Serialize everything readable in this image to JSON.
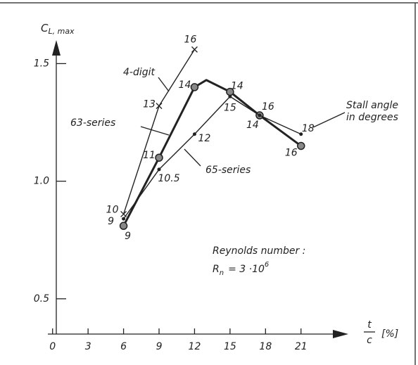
{
  "chart_data": {
    "type": "line",
    "y_label": [
      "C",
      "L, max"
    ],
    "x_label": [
      "t",
      "c",
      "[%]"
    ],
    "xlim": [
      -0.4,
      25
    ],
    "ylim": [
      0.35,
      1.6
    ],
    "xticks": [
      0,
      3,
      6,
      9,
      12,
      15,
      18,
      21
    ],
    "yticks": [
      0.5,
      {
        "value": 1,
        "label": "1.0"
      },
      1.5
    ],
    "series": [
      {
        "name": "4-digit",
        "color": "#222",
        "x": [
          6,
          9,
          12
        ],
        "values": [
          0.86,
          1.32,
          1.56
        ],
        "labels": [
          10,
          13,
          16
        ]
      },
      {
        "name": "63-series",
        "color": "#222",
        "x": [
          6,
          9,
          12,
          13,
          15,
          17.5,
          21
        ],
        "values": [
          0.81,
          1.1,
          1.4,
          1.43,
          1.38,
          1.28,
          1.15
        ],
        "labels": [
          9,
          11,
          14,
          null,
          14,
          16,
          16
        ]
      },
      {
        "name": "65-series",
        "color": "#222",
        "x": [
          6,
          9,
          12,
          15,
          17.5,
          21
        ],
        "values": [
          0.84,
          1.05,
          1.2,
          1.36,
          1.28,
          1.2
        ],
        "labels": [
          9,
          10.5,
          12,
          15,
          14,
          18
        ]
      }
    ],
    "stall_note": [
      "Stall angle",
      "in degrees"
    ],
    "reynolds_title": "Reynolds number :",
    "reynolds_formula": [
      "R",
      "n",
      "= 3 ·10",
      "6"
    ]
  }
}
